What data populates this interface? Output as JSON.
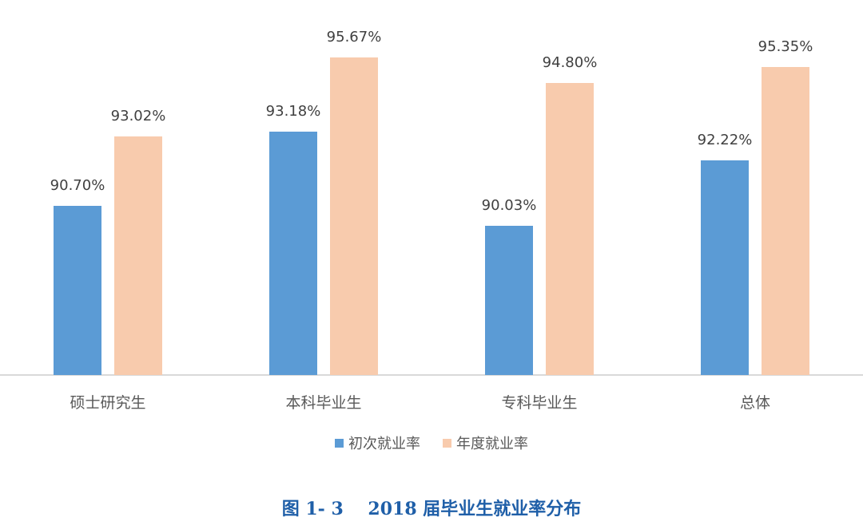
{
  "chart_data": {
    "type": "bar",
    "title": "图 1-3    2018 届毕业生就业率分布",
    "categories": [
      "硕士研究生",
      "本科毕业生",
      "专科毕业生",
      "总体"
    ],
    "series": [
      {
        "name": "初次就业率",
        "color": "#5b9bd5",
        "values": [
          90.7,
          93.18,
          90.03,
          92.22
        ],
        "labels": [
          "90.70%",
          "93.18%",
          "90.03%",
          "92.22%"
        ]
      },
      {
        "name": "年度就业率",
        "color": "#f8cbad",
        "values": [
          93.02,
          95.67,
          94.8,
          95.35
        ],
        "labels": [
          "93.02%",
          "95.67%",
          "94.80%",
          "95.35%"
        ]
      }
    ],
    "xlabel": "",
    "ylabel": "",
    "ylim": [
      85.05,
      96.7
    ],
    "unit": "%",
    "grid": false,
    "legend_position": "bottom",
    "data_labels": true
  },
  "legend": {
    "items": [
      {
        "label": "初次就业率",
        "color": "#5b9bd5"
      },
      {
        "label": "年度就业率",
        "color": "#f8cbad"
      }
    ]
  },
  "caption": {
    "figure_no": "图 1- 3",
    "text": "2018 届毕业生就业率分布"
  }
}
